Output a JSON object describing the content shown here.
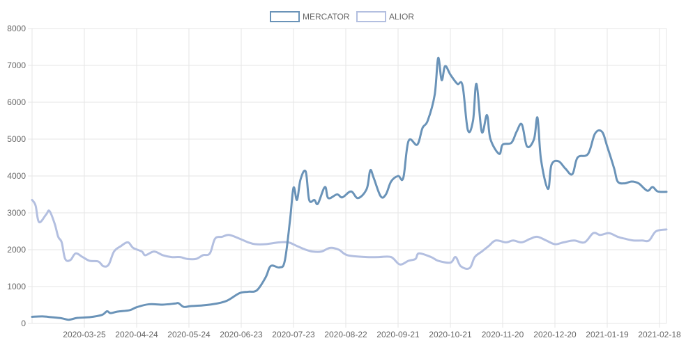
{
  "chart_data": {
    "type": "line",
    "title": "",
    "xlabel": "",
    "ylabel": "",
    "ylim": [
      0,
      8000
    ],
    "yticks": [
      0,
      1000,
      2000,
      3000,
      4000,
      5000,
      6000,
      7000,
      8000
    ],
    "x_tick_labels": [
      "2020-03-25",
      "2020-04-24",
      "2020-05-24",
      "2020-06-23",
      "2020-07-23",
      "2020-08-22",
      "2020-09-21",
      "2020-10-21",
      "2020-11-20",
      "2020-12-20",
      "2021-01-19",
      "2021-02-18"
    ],
    "x_range": [
      "2020-02-24",
      "2021-02-22"
    ],
    "grid": true,
    "legend_position": "top-center",
    "series": [
      {
        "name": "MERCATOR",
        "color": "#6a93b8",
        "points": [
          [
            "2020-02-24",
            180
          ],
          [
            "2020-03-01",
            190
          ],
          [
            "2020-03-06",
            170
          ],
          [
            "2020-03-12",
            140
          ],
          [
            "2020-03-16",
            100
          ],
          [
            "2020-03-21",
            150
          ],
          [
            "2020-03-28",
            170
          ],
          [
            "2020-04-04",
            230
          ],
          [
            "2020-04-07",
            330
          ],
          [
            "2020-04-09",
            280
          ],
          [
            "2020-04-13",
            320
          ],
          [
            "2020-04-20",
            360
          ],
          [
            "2020-04-24",
            440
          ],
          [
            "2020-05-01",
            520
          ],
          [
            "2020-05-09",
            510
          ],
          [
            "2020-05-16",
            540
          ],
          [
            "2020-05-18",
            550
          ],
          [
            "2020-05-21",
            450
          ],
          [
            "2020-05-25",
            470
          ],
          [
            "2020-06-01",
            490
          ],
          [
            "2020-06-09",
            540
          ],
          [
            "2020-06-15",
            620
          ],
          [
            "2020-06-22",
            820
          ],
          [
            "2020-06-27",
            860
          ],
          [
            "2020-07-02",
            900
          ],
          [
            "2020-07-07",
            1250
          ],
          [
            "2020-07-10",
            1560
          ],
          [
            "2020-07-15",
            1520
          ],
          [
            "2020-07-18",
            1700
          ],
          [
            "2020-07-21",
            2800
          ],
          [
            "2020-07-23",
            3680
          ],
          [
            "2020-07-25",
            3350
          ],
          [
            "2020-07-27",
            3900
          ],
          [
            "2020-07-30",
            4120
          ],
          [
            "2020-08-01",
            3350
          ],
          [
            "2020-08-04",
            3350
          ],
          [
            "2020-08-06",
            3250
          ],
          [
            "2020-08-10",
            3700
          ],
          [
            "2020-08-12",
            3400
          ],
          [
            "2020-08-17",
            3500
          ],
          [
            "2020-08-20",
            3420
          ],
          [
            "2020-08-25",
            3580
          ],
          [
            "2020-08-29",
            3400
          ],
          [
            "2020-09-03",
            3650
          ],
          [
            "2020-09-05",
            4150
          ],
          [
            "2020-09-07",
            3950
          ],
          [
            "2020-09-11",
            3450
          ],
          [
            "2020-09-14",
            3500
          ],
          [
            "2020-09-17",
            3850
          ],
          [
            "2020-09-21",
            4000
          ],
          [
            "2020-09-24",
            3950
          ],
          [
            "2020-09-27",
            4950
          ],
          [
            "2020-10-02",
            4850
          ],
          [
            "2020-10-05",
            5300
          ],
          [
            "2020-10-08",
            5500
          ],
          [
            "2020-10-12",
            6200
          ],
          [
            "2020-10-14",
            7200
          ],
          [
            "2020-10-16",
            6600
          ],
          [
            "2020-10-18",
            6980
          ],
          [
            "2020-10-21",
            6750
          ],
          [
            "2020-10-25",
            6500
          ],
          [
            "2020-10-28",
            6450
          ],
          [
            "2020-10-31",
            5250
          ],
          [
            "2020-11-03",
            5500
          ],
          [
            "2020-11-05",
            6500
          ],
          [
            "2020-11-08",
            5200
          ],
          [
            "2020-11-11",
            5650
          ],
          [
            "2020-11-13",
            5000
          ],
          [
            "2020-11-18",
            4600
          ],
          [
            "2020-11-20",
            4850
          ],
          [
            "2020-11-25",
            4900
          ],
          [
            "2020-11-28",
            5200
          ],
          [
            "2020-12-01",
            5400
          ],
          [
            "2020-12-04",
            4800
          ],
          [
            "2020-12-08",
            5000
          ],
          [
            "2020-12-10",
            5580
          ],
          [
            "2020-12-12",
            4450
          ],
          [
            "2020-12-16",
            3650
          ],
          [
            "2020-12-18",
            4300
          ],
          [
            "2020-12-22",
            4400
          ],
          [
            "2020-12-26",
            4200
          ],
          [
            "2020-12-30",
            4050
          ],
          [
            "2021-01-02",
            4500
          ],
          [
            "2021-01-08",
            4600
          ],
          [
            "2021-01-12",
            5150
          ],
          [
            "2021-01-16",
            5200
          ],
          [
            "2021-01-19",
            4800
          ],
          [
            "2021-01-23",
            4200
          ],
          [
            "2021-01-25",
            3850
          ],
          [
            "2021-01-29",
            3800
          ],
          [
            "2021-02-02",
            3850
          ],
          [
            "2021-02-06",
            3800
          ],
          [
            "2021-02-11",
            3600
          ],
          [
            "2021-02-14",
            3700
          ],
          [
            "2021-02-17",
            3580
          ],
          [
            "2021-02-22",
            3570
          ]
        ]
      },
      {
        "name": "ALIOR",
        "color": "#b3bfe0",
        "points": [
          [
            "2020-02-24",
            3350
          ],
          [
            "2020-02-26",
            3200
          ],
          [
            "2020-02-28",
            2750
          ],
          [
            "2020-03-03",
            2950
          ],
          [
            "2020-03-05",
            3050
          ],
          [
            "2020-03-08",
            2700
          ],
          [
            "2020-03-10",
            2350
          ],
          [
            "2020-03-12",
            2200
          ],
          [
            "2020-03-14",
            1750
          ],
          [
            "2020-03-17",
            1720
          ],
          [
            "2020-03-20",
            1900
          ],
          [
            "2020-03-24",
            1800
          ],
          [
            "2020-03-28",
            1700
          ],
          [
            "2020-04-02",
            1680
          ],
          [
            "2020-04-05",
            1550
          ],
          [
            "2020-04-08",
            1600
          ],
          [
            "2020-04-11",
            1950
          ],
          [
            "2020-04-15",
            2100
          ],
          [
            "2020-04-19",
            2200
          ],
          [
            "2020-04-22",
            2050
          ],
          [
            "2020-04-27",
            1950
          ],
          [
            "2020-04-29",
            1850
          ],
          [
            "2020-05-04",
            1950
          ],
          [
            "2020-05-09",
            1850
          ],
          [
            "2020-05-14",
            1800
          ],
          [
            "2020-05-19",
            1800
          ],
          [
            "2020-05-23",
            1750
          ],
          [
            "2020-05-28",
            1750
          ],
          [
            "2020-06-01",
            1850
          ],
          [
            "2020-06-05",
            1900
          ],
          [
            "2020-06-08",
            2300
          ],
          [
            "2020-06-12",
            2350
          ],
          [
            "2020-06-16",
            2400
          ],
          [
            "2020-06-22",
            2300
          ],
          [
            "2020-06-27",
            2200
          ],
          [
            "2020-07-01",
            2150
          ],
          [
            "2020-07-07",
            2150
          ],
          [
            "2020-07-15",
            2200
          ],
          [
            "2020-07-20",
            2200
          ],
          [
            "2020-07-25",
            2100
          ],
          [
            "2020-07-30",
            2000
          ],
          [
            "2020-08-03",
            1950
          ],
          [
            "2020-08-08",
            1950
          ],
          [
            "2020-08-13",
            2050
          ],
          [
            "2020-08-18",
            2000
          ],
          [
            "2020-08-23",
            1850
          ],
          [
            "2020-09-03",
            1800
          ],
          [
            "2020-09-10",
            1800
          ],
          [
            "2020-09-17",
            1800
          ],
          [
            "2020-09-22",
            1600
          ],
          [
            "2020-09-27",
            1700
          ],
          [
            "2020-10-01",
            1750
          ],
          [
            "2020-10-03",
            1900
          ],
          [
            "2020-10-10",
            1800
          ],
          [
            "2020-10-14",
            1700
          ],
          [
            "2020-10-21",
            1650
          ],
          [
            "2020-10-24",
            1800
          ],
          [
            "2020-10-27",
            1550
          ],
          [
            "2020-11-01",
            1500
          ],
          [
            "2020-11-04",
            1800
          ],
          [
            "2020-11-08",
            1950
          ],
          [
            "2020-11-12",
            2100
          ],
          [
            "2020-11-16",
            2250
          ],
          [
            "2020-11-22",
            2200
          ],
          [
            "2020-11-26",
            2250
          ],
          [
            "2020-12-01",
            2200
          ],
          [
            "2020-12-06",
            2300
          ],
          [
            "2020-12-10",
            2350
          ],
          [
            "2020-12-15",
            2250
          ],
          [
            "2020-12-20",
            2150
          ],
          [
            "2020-12-25",
            2200
          ],
          [
            "2020-12-31",
            2250
          ],
          [
            "2021-01-06",
            2200
          ],
          [
            "2021-01-11",
            2450
          ],
          [
            "2021-01-15",
            2400
          ],
          [
            "2021-01-20",
            2450
          ],
          [
            "2021-01-25",
            2350
          ],
          [
            "2021-01-29",
            2300
          ],
          [
            "2021-02-03",
            2250
          ],
          [
            "2021-02-08",
            2250
          ],
          [
            "2021-02-12",
            2250
          ],
          [
            "2021-02-16",
            2500
          ],
          [
            "2021-02-22",
            2550
          ]
        ]
      }
    ]
  }
}
